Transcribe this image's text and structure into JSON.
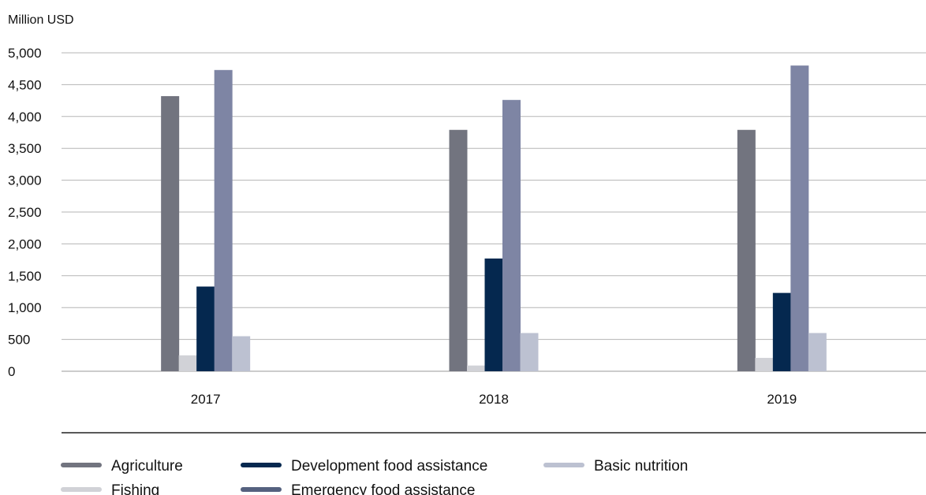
{
  "chart_data": {
    "type": "bar",
    "ylabel": "Million USD",
    "ylim": [
      0,
      5000
    ],
    "yticks": [
      0,
      500,
      1000,
      1500,
      2000,
      2500,
      3000,
      3500,
      4000,
      4500,
      5000
    ],
    "ytick_labels": [
      "0",
      "500",
      "1,000",
      "1,500",
      "2,000",
      "2,500",
      "3,000",
      "3,500",
      "4,000",
      "4,500",
      "5,000"
    ],
    "categories": [
      "2017",
      "2018",
      "2019"
    ],
    "grid": true,
    "legend_position": "bottom",
    "series": [
      {
        "name": "Agriculture",
        "color": "#72747f",
        "values": [
          4320,
          3790,
          3790
        ]
      },
      {
        "name": "Fishing",
        "color": "#d1d2d7",
        "values": [
          250,
          90,
          210
        ]
      },
      {
        "name": "Development food assistance",
        "color": "#05284f",
        "values": [
          1330,
          1770,
          1230
        ]
      },
      {
        "name": "Emergency food assistance",
        "color": "#7e85a4",
        "values": [
          4730,
          4260,
          4800
        ]
      },
      {
        "name": "Basic nutrition",
        "color": "#bcc1d1",
        "values": [
          550,
          600,
          600
        ]
      }
    ],
    "legend_order": [
      "Agriculture",
      "Development food assistance",
      "Basic nutrition",
      "Fishing",
      "Emergency food assistance"
    ]
  },
  "colors": {
    "gridline": "#b5b5b5",
    "axis_text": "#111111",
    "legend_emergency_swatch": "#55617f"
  }
}
